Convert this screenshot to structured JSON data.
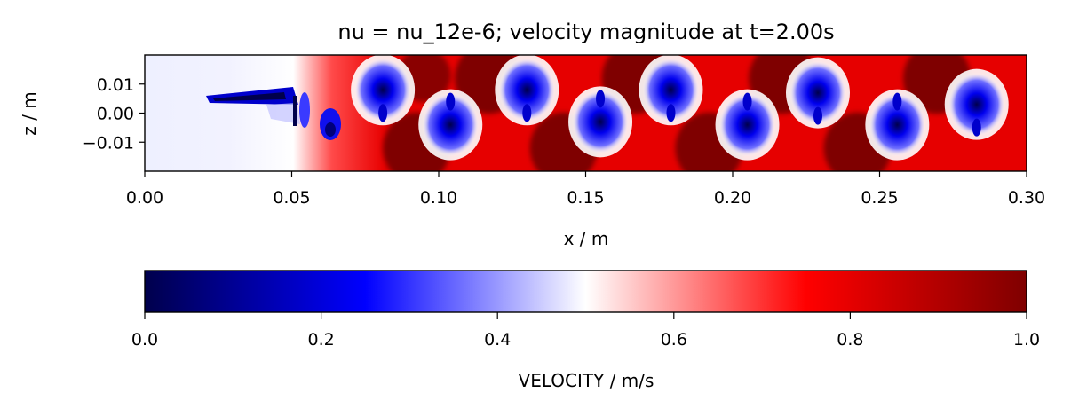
{
  "chart_data": [
    {
      "type": "heatmap",
      "title": "nu = nu_12e-6; velocity magnitude at t=2.00s",
      "xlabel": "x / m",
      "ylabel": "z / m",
      "xlim": [
        0.0,
        0.3
      ],
      "ylim": [
        -0.02,
        0.02
      ],
      "xticks": [
        "0.00",
        "0.05",
        "0.10",
        "0.15",
        "0.20",
        "0.25",
        "0.30"
      ],
      "xtick_values": [
        0.0,
        0.05,
        0.1,
        0.15,
        0.2,
        0.25,
        0.3
      ],
      "yticks": [
        "0.01",
        "0.00",
        "−0.01"
      ],
      "ytick_values": [
        0.01,
        0.0,
        -0.01
      ],
      "colormap": "seismic",
      "grid": false,
      "slow_blobs": [
        {
          "x": 0.081,
          "z": 0.008
        },
        {
          "x": 0.104,
          "z": -0.004
        },
        {
          "x": 0.13,
          "z": 0.008
        },
        {
          "x": 0.155,
          "z": -0.003
        },
        {
          "x": 0.179,
          "z": 0.008
        },
        {
          "x": 0.205,
          "z": -0.004
        },
        {
          "x": 0.229,
          "z": 0.007
        },
        {
          "x": 0.256,
          "z": -0.004
        },
        {
          "x": 0.283,
          "z": 0.003
        }
      ]
    },
    {
      "type": "colorbar",
      "label": "VELOCITY / m/s",
      "range": [
        0.0,
        1.0
      ],
      "ticks": [
        "0.0",
        "0.2",
        "0.4",
        "0.6",
        "0.8",
        "1.0"
      ],
      "tick_values": [
        0.0,
        0.2,
        0.4,
        0.6,
        0.8,
        1.0
      ],
      "colormap": "seismic",
      "stops": [
        "#00004c",
        "#0000ff",
        "#ffffff",
        "#ff0000",
        "#7f0000"
      ]
    }
  ]
}
